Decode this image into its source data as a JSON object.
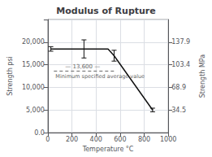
{
  "chart_data": {
    "type": "line",
    "title": "Modulus of Rupture",
    "xlabel": "Temperature °C",
    "ylabel": "Strength psi",
    "y2label": "Strength MPa",
    "x": [
      25,
      500,
      550,
      870
    ],
    "values": [
      18500,
      18500,
      17000,
      5000
    ],
    "color": "#111111",
    "error_bars": {
      "x": [
        25,
        300,
        550,
        870
      ],
      "values": [
        18500,
        18500,
        17000,
        5000
      ],
      "errors": [
        500,
        2000,
        1200,
        400
      ]
    },
    "reference_line": {
      "y": 13600,
      "x": [
        50,
        560
      ],
      "label": "— 13,600 —",
      "sublabel": "Minimum specified average value",
      "color": "#666666",
      "line_style": "dashed"
    },
    "xlim": [
      0,
      1000
    ],
    "xticks": [
      0,
      200,
      400,
      600,
      800,
      1000
    ],
    "ylim": [
      0,
      25000
    ],
    "yticks": [
      {
        "value": 0,
        "label": "0.0"
      },
      {
        "value": 5000,
        "label": "5,000"
      },
      {
        "value": 10000,
        "label": "10,000"
      },
      {
        "value": 15000,
        "label": "15,000"
      },
      {
        "value": 20000,
        "label": "20,000"
      }
    ],
    "y2lim": [
      0,
      172.4
    ],
    "y2ticks": [
      34.5,
      68.9,
      103.4,
      137.9
    ],
    "grid": true
  }
}
